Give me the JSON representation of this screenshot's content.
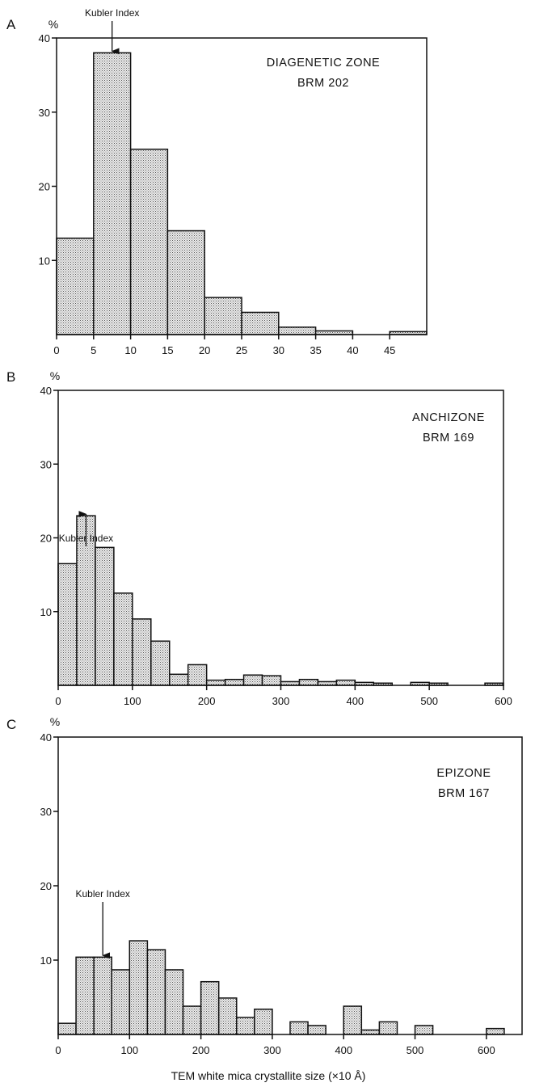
{
  "figure": {
    "xlabel": "TEM white mica crystallite size (×10 Å)"
  },
  "chart_data": [
    {
      "type": "bar",
      "panel": "A",
      "title": [
        "DIAGENETIC ZONE",
        "BRM 202"
      ],
      "ylabel": "%",
      "xlabel": "",
      "annotation": {
        "text": "Kubler Index",
        "x": 7.5
      },
      "xlim": [
        0,
        50
      ],
      "ylim": [
        0,
        40
      ],
      "xticks": [
        0,
        5,
        10,
        15,
        20,
        25,
        30,
        35,
        40,
        45
      ],
      "yticks": [
        10,
        20,
        30,
        40
      ],
      "bin_width": 5,
      "bins": [
        0,
        5,
        10,
        15,
        20,
        25,
        30,
        35,
        40,
        45
      ],
      "values": [
        13,
        38,
        25,
        14,
        5,
        3,
        1,
        0.5,
        0,
        0.4
      ]
    },
    {
      "type": "bar",
      "panel": "B",
      "title": [
        "ANCHIZONE",
        "BRM 169"
      ],
      "ylabel": "%",
      "xlabel": "",
      "annotation": {
        "text": "Kubler Index",
        "x": 37.5
      },
      "xlim": [
        0,
        600
      ],
      "ylim": [
        0,
        40
      ],
      "xticks": [
        0,
        100,
        200,
        300,
        400,
        500,
        600
      ],
      "yticks": [
        10,
        20,
        30,
        40
      ],
      "bin_width": 25,
      "bins": [
        0,
        25,
        50,
        75,
        100,
        125,
        150,
        175,
        200,
        225,
        250,
        275,
        300,
        325,
        350,
        375,
        400,
        425,
        450,
        475,
        500,
        525,
        550,
        575
      ],
      "values": [
        16.5,
        23,
        18.7,
        12.5,
        9,
        6,
        1.5,
        2.8,
        0.7,
        0.8,
        1.4,
        1.3,
        0.5,
        0.8,
        0.5,
        0.7,
        0.4,
        0.3,
        0,
        0.4,
        0.3,
        0,
        0,
        0.3
      ]
    },
    {
      "type": "bar",
      "panel": "C",
      "title": [
        "EPIZONE",
        "BRM 167"
      ],
      "ylabel": "%",
      "xlabel": "TEM white mica crystallite size (×10 Å)",
      "annotation": {
        "text": "Kubler Index",
        "x": 62.5
      },
      "xlim": [
        0,
        650
      ],
      "ylim": [
        0,
        40
      ],
      "xticks": [
        0,
        100,
        200,
        300,
        400,
        500,
        600
      ],
      "yticks": [
        10,
        20,
        30,
        40
      ],
      "bin_width": 25,
      "bins": [
        0,
        25,
        50,
        75,
        100,
        125,
        150,
        175,
        200,
        225,
        250,
        275,
        300,
        325,
        350,
        375,
        400,
        425,
        450,
        475,
        500,
        525,
        550,
        575,
        600,
        625
      ],
      "values": [
        1.5,
        10.4,
        10.4,
        8.7,
        12.6,
        11.4,
        8.7,
        3.8,
        7.1,
        4.9,
        2.3,
        3.4,
        0,
        1.7,
        1.2,
        0,
        3.8,
        0.6,
        1.7,
        0,
        1.2,
        0,
        0,
        0,
        0.8,
        0
      ]
    }
  ]
}
